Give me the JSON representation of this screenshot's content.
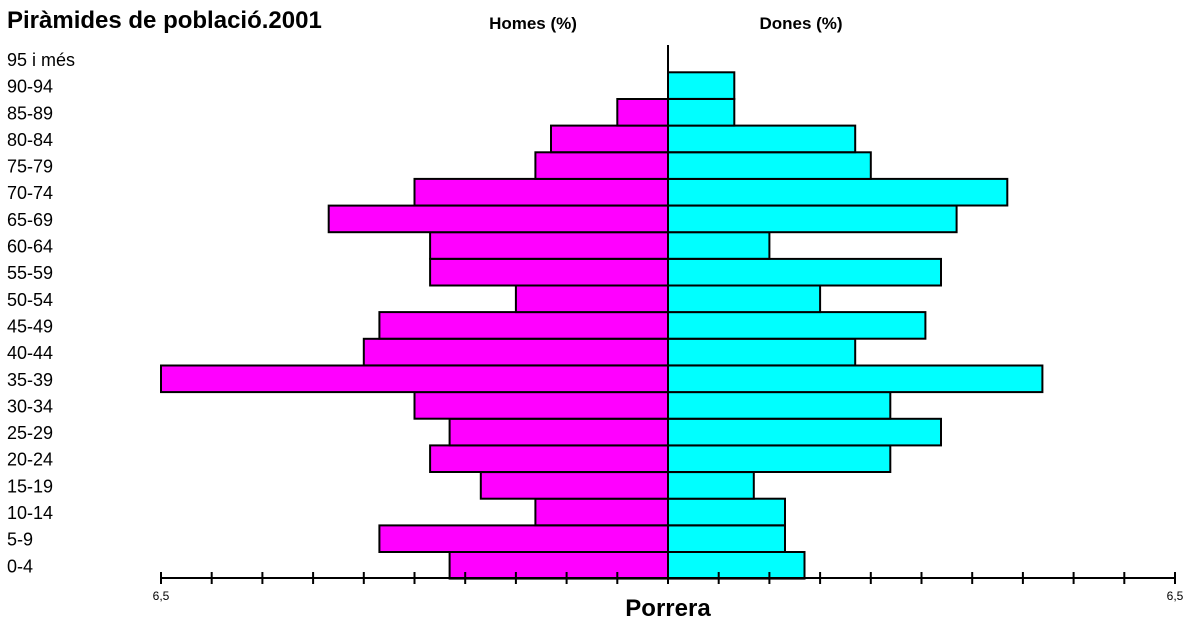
{
  "header": {
    "title": "Piràmides de població.2001",
    "left_label": "Homes (%)",
    "right_label": "Dones (%)"
  },
  "footer": {
    "place": "Porrera"
  },
  "chart_data": {
    "type": "bar",
    "orientation": "horizontal-butterfly",
    "title": "Piràmides de població.2001",
    "xlabel": "Porrera",
    "xlim": [
      -6.5,
      6.5
    ],
    "x_tick_step": 0.65,
    "x_tick_labels": [
      "6,5",
      "6,5"
    ],
    "categories": [
      "0-4",
      "5-9",
      "10-14",
      "15-19",
      "20-24",
      "25-29",
      "30-34",
      "35-39",
      "40-44",
      "45-49",
      "50-54",
      "55-59",
      "60-64",
      "65-69",
      "70-74",
      "75-79",
      "80-84",
      "85-89",
      "90-94",
      "95 i més"
    ],
    "series": [
      {
        "name": "Homes (%)",
        "side": "left",
        "color": "#FF00FF",
        "values": [
          2.8,
          3.7,
          1.7,
          2.4,
          3.05,
          2.8,
          3.25,
          6.5,
          3.9,
          3.7,
          1.95,
          3.05,
          3.05,
          4.35,
          3.25,
          1.7,
          1.5,
          0.65,
          0,
          0
        ]
      },
      {
        "name": "Dones (%)",
        "side": "right",
        "color": "#00FFFF",
        "values": [
          1.75,
          1.5,
          1.5,
          1.1,
          2.85,
          3.5,
          2.85,
          4.8,
          2.4,
          3.3,
          1.95,
          3.5,
          1.3,
          3.7,
          4.35,
          2.6,
          2.4,
          0.85,
          0.85,
          0
        ]
      }
    ],
    "grid": false,
    "legend": "none"
  }
}
